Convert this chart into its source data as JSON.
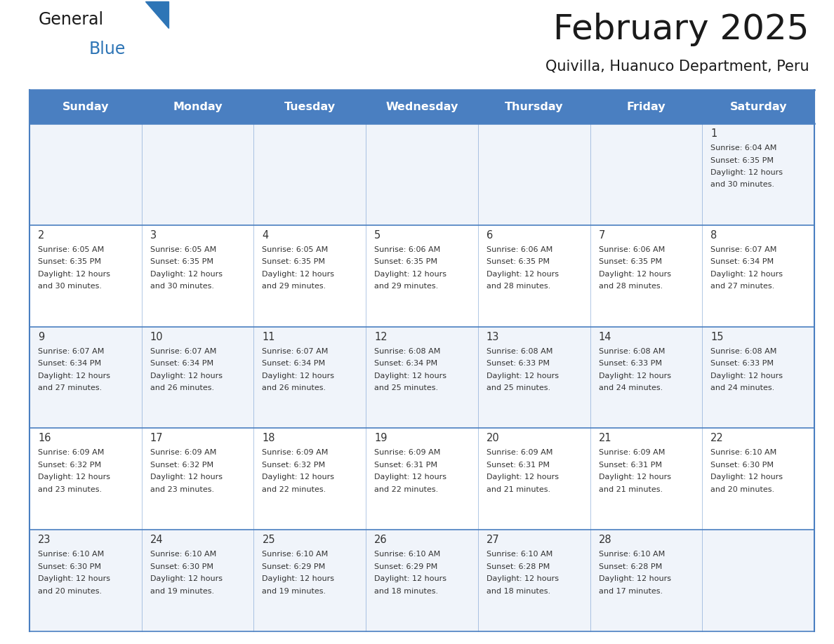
{
  "title": "February 2025",
  "subtitle": "Quivilla, Huanuco Department, Peru",
  "days_of_week": [
    "Sunday",
    "Monday",
    "Tuesday",
    "Wednesday",
    "Thursday",
    "Friday",
    "Saturday"
  ],
  "header_bg": "#4A7FC1",
  "header_text": "#FFFFFF",
  "cell_bg_light": "#F0F4FA",
  "cell_bg_white": "#FFFFFF",
  "cell_text": "#333333",
  "line_color": "#4A7FC1",
  "title_color": "#1a1a1a",
  "subtitle_color": "#1a1a1a",
  "logo_general_color": "#1a1a1a",
  "logo_blue_color": "#2E75B6",
  "calendar_data": [
    [
      null,
      null,
      null,
      null,
      null,
      null,
      {
        "day": 1,
        "sunrise": "6:04 AM",
        "sunset": "6:35 PM",
        "daylight": "12 hours",
        "daylight2": "and 30 minutes."
      }
    ],
    [
      {
        "day": 2,
        "sunrise": "6:05 AM",
        "sunset": "6:35 PM",
        "daylight": "12 hours",
        "daylight2": "and 30 minutes."
      },
      {
        "day": 3,
        "sunrise": "6:05 AM",
        "sunset": "6:35 PM",
        "daylight": "12 hours",
        "daylight2": "and 30 minutes."
      },
      {
        "day": 4,
        "sunrise": "6:05 AM",
        "sunset": "6:35 PM",
        "daylight": "12 hours",
        "daylight2": "and 29 minutes."
      },
      {
        "day": 5,
        "sunrise": "6:06 AM",
        "sunset": "6:35 PM",
        "daylight": "12 hours",
        "daylight2": "and 29 minutes."
      },
      {
        "day": 6,
        "sunrise": "6:06 AM",
        "sunset": "6:35 PM",
        "daylight": "12 hours",
        "daylight2": "and 28 minutes."
      },
      {
        "day": 7,
        "sunrise": "6:06 AM",
        "sunset": "6:35 PM",
        "daylight": "12 hours",
        "daylight2": "and 28 minutes."
      },
      {
        "day": 8,
        "sunrise": "6:07 AM",
        "sunset": "6:34 PM",
        "daylight": "12 hours",
        "daylight2": "and 27 minutes."
      }
    ],
    [
      {
        "day": 9,
        "sunrise": "6:07 AM",
        "sunset": "6:34 PM",
        "daylight": "12 hours",
        "daylight2": "and 27 minutes."
      },
      {
        "day": 10,
        "sunrise": "6:07 AM",
        "sunset": "6:34 PM",
        "daylight": "12 hours",
        "daylight2": "and 26 minutes."
      },
      {
        "day": 11,
        "sunrise": "6:07 AM",
        "sunset": "6:34 PM",
        "daylight": "12 hours",
        "daylight2": "and 26 minutes."
      },
      {
        "day": 12,
        "sunrise": "6:08 AM",
        "sunset": "6:34 PM",
        "daylight": "12 hours",
        "daylight2": "and 25 minutes."
      },
      {
        "day": 13,
        "sunrise": "6:08 AM",
        "sunset": "6:33 PM",
        "daylight": "12 hours",
        "daylight2": "and 25 minutes."
      },
      {
        "day": 14,
        "sunrise": "6:08 AM",
        "sunset": "6:33 PM",
        "daylight": "12 hours",
        "daylight2": "and 24 minutes."
      },
      {
        "day": 15,
        "sunrise": "6:08 AM",
        "sunset": "6:33 PM",
        "daylight": "12 hours",
        "daylight2": "and 24 minutes."
      }
    ],
    [
      {
        "day": 16,
        "sunrise": "6:09 AM",
        "sunset": "6:32 PM",
        "daylight": "12 hours",
        "daylight2": "and 23 minutes."
      },
      {
        "day": 17,
        "sunrise": "6:09 AM",
        "sunset": "6:32 PM",
        "daylight": "12 hours",
        "daylight2": "and 23 minutes."
      },
      {
        "day": 18,
        "sunrise": "6:09 AM",
        "sunset": "6:32 PM",
        "daylight": "12 hours",
        "daylight2": "and 22 minutes."
      },
      {
        "day": 19,
        "sunrise": "6:09 AM",
        "sunset": "6:31 PM",
        "daylight": "12 hours",
        "daylight2": "and 22 minutes."
      },
      {
        "day": 20,
        "sunrise": "6:09 AM",
        "sunset": "6:31 PM",
        "daylight": "12 hours",
        "daylight2": "and 21 minutes."
      },
      {
        "day": 21,
        "sunrise": "6:09 AM",
        "sunset": "6:31 PM",
        "daylight": "12 hours",
        "daylight2": "and 21 minutes."
      },
      {
        "day": 22,
        "sunrise": "6:10 AM",
        "sunset": "6:30 PM",
        "daylight": "12 hours",
        "daylight2": "and 20 minutes."
      }
    ],
    [
      {
        "day": 23,
        "sunrise": "6:10 AM",
        "sunset": "6:30 PM",
        "daylight": "12 hours",
        "daylight2": "and 20 minutes."
      },
      {
        "day": 24,
        "sunrise": "6:10 AM",
        "sunset": "6:30 PM",
        "daylight": "12 hours",
        "daylight2": "and 19 minutes."
      },
      {
        "day": 25,
        "sunrise": "6:10 AM",
        "sunset": "6:29 PM",
        "daylight": "12 hours",
        "daylight2": "and 19 minutes."
      },
      {
        "day": 26,
        "sunrise": "6:10 AM",
        "sunset": "6:29 PM",
        "daylight": "12 hours",
        "daylight2": "and 18 minutes."
      },
      {
        "day": 27,
        "sunrise": "6:10 AM",
        "sunset": "6:28 PM",
        "daylight": "12 hours",
        "daylight2": "and 18 minutes."
      },
      {
        "day": 28,
        "sunrise": "6:10 AM",
        "sunset": "6:28 PM",
        "daylight": "12 hours",
        "daylight2": "and 17 minutes."
      },
      null
    ]
  ]
}
